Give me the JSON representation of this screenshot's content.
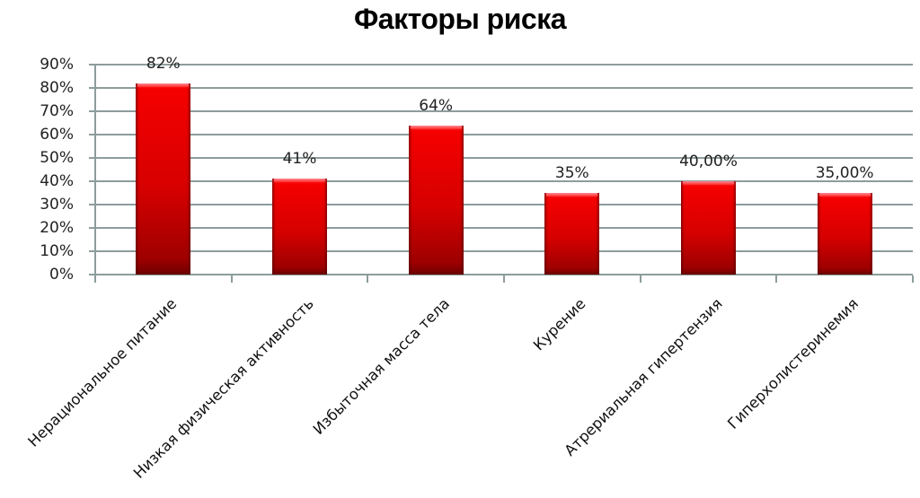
{
  "chart_data": {
    "type": "bar",
    "title": "Факторы риска",
    "xlabel": "",
    "ylabel": "",
    "ylim": [
      0,
      0.9
    ],
    "grid": true,
    "legend": null,
    "y_ticks": [
      "0%",
      "10%",
      "20%",
      "30%",
      "40%",
      "50%",
      "60%",
      "70%",
      "80%",
      "90%"
    ],
    "categories": [
      "Нерациональное питание",
      "Низкая физическая активность",
      "Избыточная масса тела",
      "Курение",
      "Атрериальная гипертензия",
      "Гиперхолистеринемия"
    ],
    "values": [
      0.82,
      0.41,
      0.64,
      0.35,
      0.4,
      0.35
    ],
    "data_labels": [
      "82%",
      "41%",
      "64%",
      "35%",
      "40,00%",
      "35,00%"
    ],
    "bar_color": "#e00000",
    "gridline_color": "#8d9c9c"
  }
}
